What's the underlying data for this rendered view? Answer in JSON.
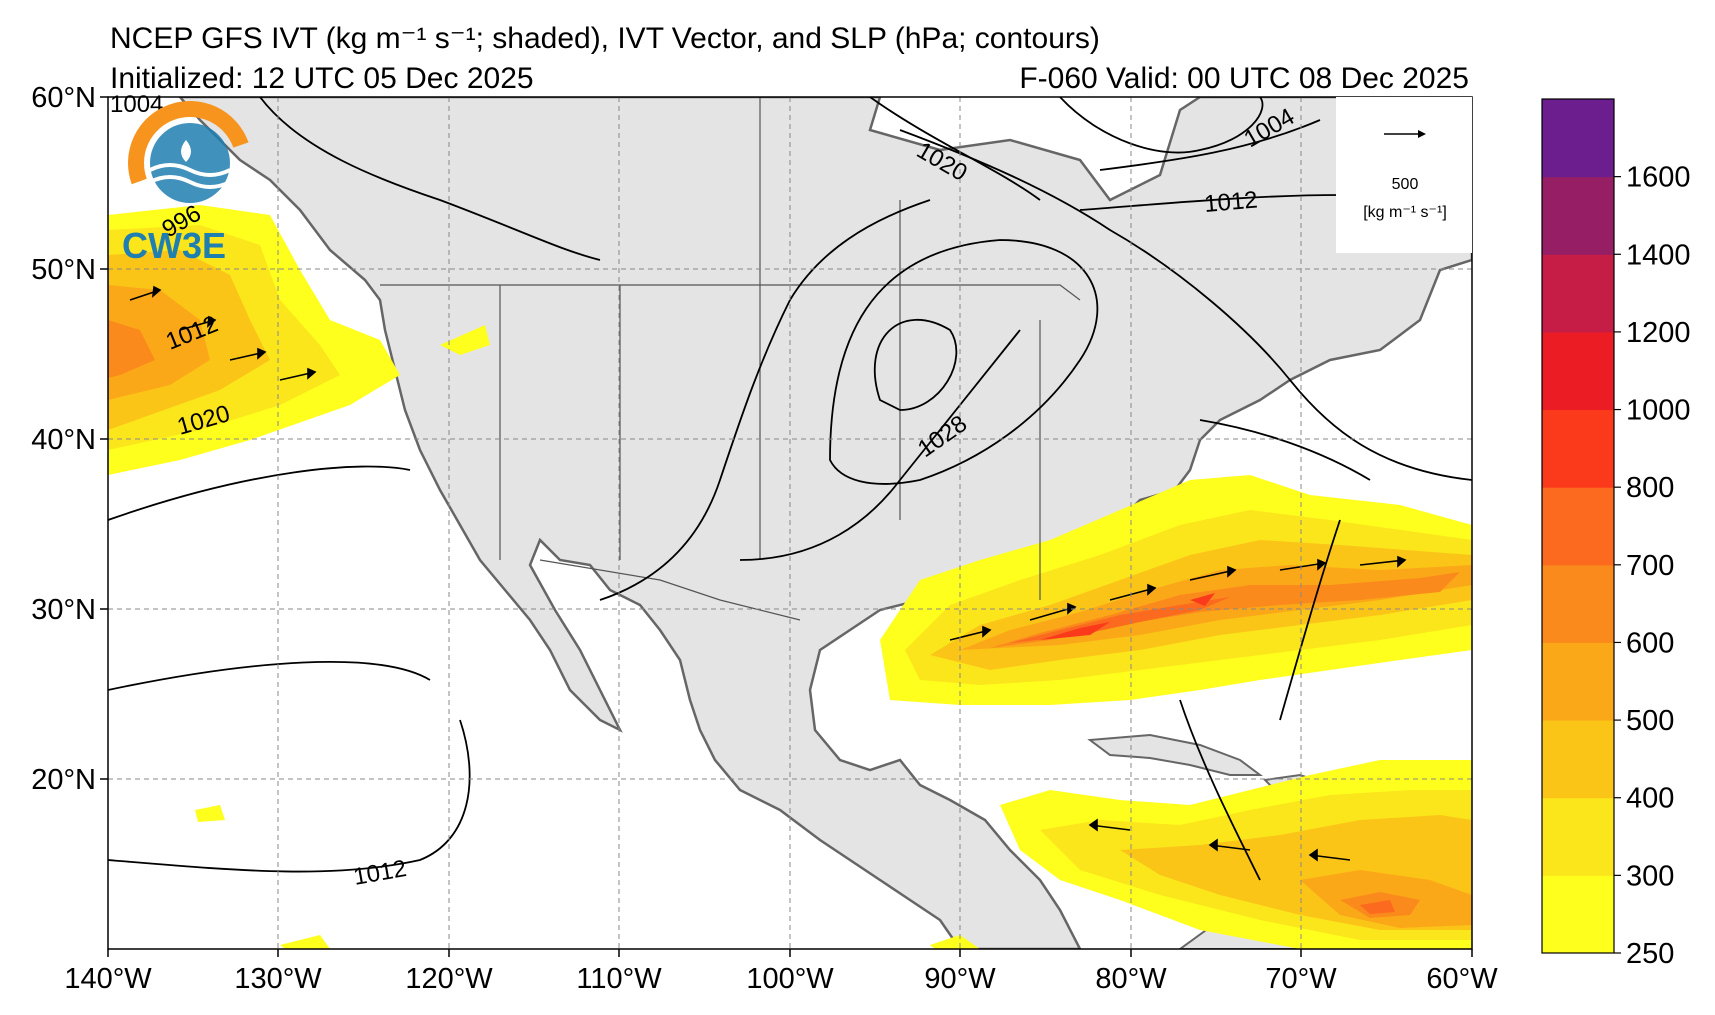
{
  "header": {
    "title": "NCEP GFS IVT (kg m⁻¹ s⁻¹; shaded), IVT Vector, and SLP (hPa; contours)",
    "initialized": "Initialized: 12 UTC 05 Dec 2025",
    "valid": "F-060  Valid: 00 UTC 08 Dec 2025"
  },
  "logo": {
    "text": "CW3E",
    "icon": "cw3e-logo-icon"
  },
  "axes": {
    "lat_labels": [
      "60°N",
      "50°N",
      "40°N",
      "30°N",
      "20°N"
    ],
    "lon_labels": [
      "140°W",
      "130°W",
      "120°W",
      "110°W",
      "100°W",
      "90°W",
      "80°W",
      "70°W",
      "60°W"
    ],
    "lat_range": [
      10,
      60
    ],
    "lon_range": [
      -140,
      -60
    ],
    "grid": "dashed"
  },
  "legend": {
    "reference_value": "500",
    "reference_units": "[kg m⁻¹ s⁻¹]"
  },
  "colorbar": {
    "labels": [
      "1600",
      "1400",
      "1200",
      "1000",
      "800",
      "700",
      "600",
      "500",
      "400",
      "300",
      "250"
    ],
    "colors": [
      "#ffff1e",
      "#fbe61b",
      "#fbc518",
      "#fba818",
      "#fb8a1c",
      "#fb6a1e",
      "#fb3a1c",
      "#ec1c24",
      "#c51d45",
      "#951e65",
      "#6c1e8e"
    ]
  },
  "contour_labels": [
    "1004",
    "996",
    "1012",
    "1020",
    "1020",
    "1004",
    "1012",
    "1028",
    "1012"
  ],
  "chart_data": {
    "type": "map",
    "title": "NCEP GFS IVT (kg m⁻¹ s⁻¹; shaded), IVT Vector, and SLP (hPa; contours)",
    "colorbar_levels": [
      250,
      300,
      400,
      500,
      600,
      700,
      800,
      1000,
      1200,
      1400,
      1600
    ],
    "slp_contour_values_labeled": [
      1004,
      996,
      1012,
      1020,
      1020,
      1004,
      1012,
      1028,
      1012
    ],
    "lat_range": [
      10,
      60
    ],
    "lon_range": [
      -140,
      -60
    ]
  }
}
